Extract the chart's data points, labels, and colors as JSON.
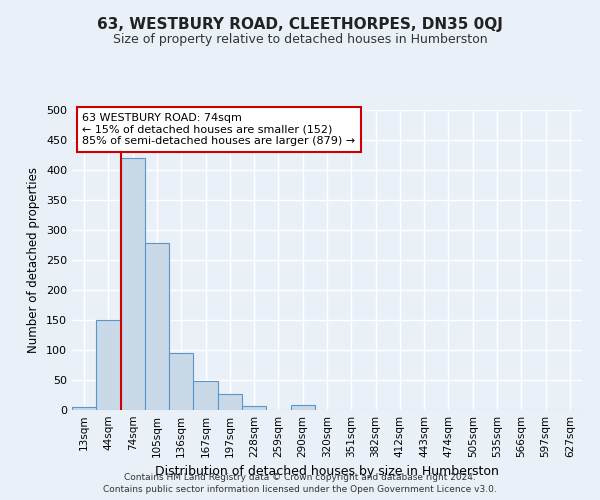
{
  "title": "63, WESTBURY ROAD, CLEETHORPES, DN35 0QJ",
  "subtitle": "Size of property relative to detached houses in Humberston",
  "xlabel": "Distribution of detached houses by size in Humberston",
  "ylabel": "Number of detached properties",
  "footnote1": "Contains HM Land Registry data © Crown copyright and database right 2024.",
  "footnote2": "Contains public sector information licensed under the Open Government Licence v3.0.",
  "bin_labels": [
    "13sqm",
    "44sqm",
    "74sqm",
    "105sqm",
    "136sqm",
    "167sqm",
    "197sqm",
    "228sqm",
    "259sqm",
    "290sqm",
    "320sqm",
    "351sqm",
    "382sqm",
    "412sqm",
    "443sqm",
    "474sqm",
    "505sqm",
    "535sqm",
    "566sqm",
    "597sqm",
    "627sqm"
  ],
  "bar_values": [
    5,
    150,
    420,
    278,
    95,
    48,
    27,
    6,
    0,
    9,
    0,
    0,
    0,
    0,
    0,
    0,
    0,
    0,
    0,
    0,
    0
  ],
  "bar_color": "#c9d9e8",
  "bar_edge_color": "#5a96c8",
  "red_line_bin_index": 2,
  "annotation_text": "63 WESTBURY ROAD: 74sqm\n← 15% of detached houses are smaller (152)\n85% of semi-detached houses are larger (879) →",
  "annotation_box_color": "#ffffff",
  "annotation_box_edge": "#cc0000",
  "ylim": [
    0,
    500
  ],
  "yticks": [
    0,
    50,
    100,
    150,
    200,
    250,
    300,
    350,
    400,
    450,
    500
  ],
  "background_color": "#eaf0f8",
  "plot_bg_color": "#eaf0f8",
  "grid_color": "#ffffff",
  "title_fontsize": 11,
  "subtitle_fontsize": 9,
  "xlabel_fontsize": 9,
  "ylabel_fontsize": 8.5
}
